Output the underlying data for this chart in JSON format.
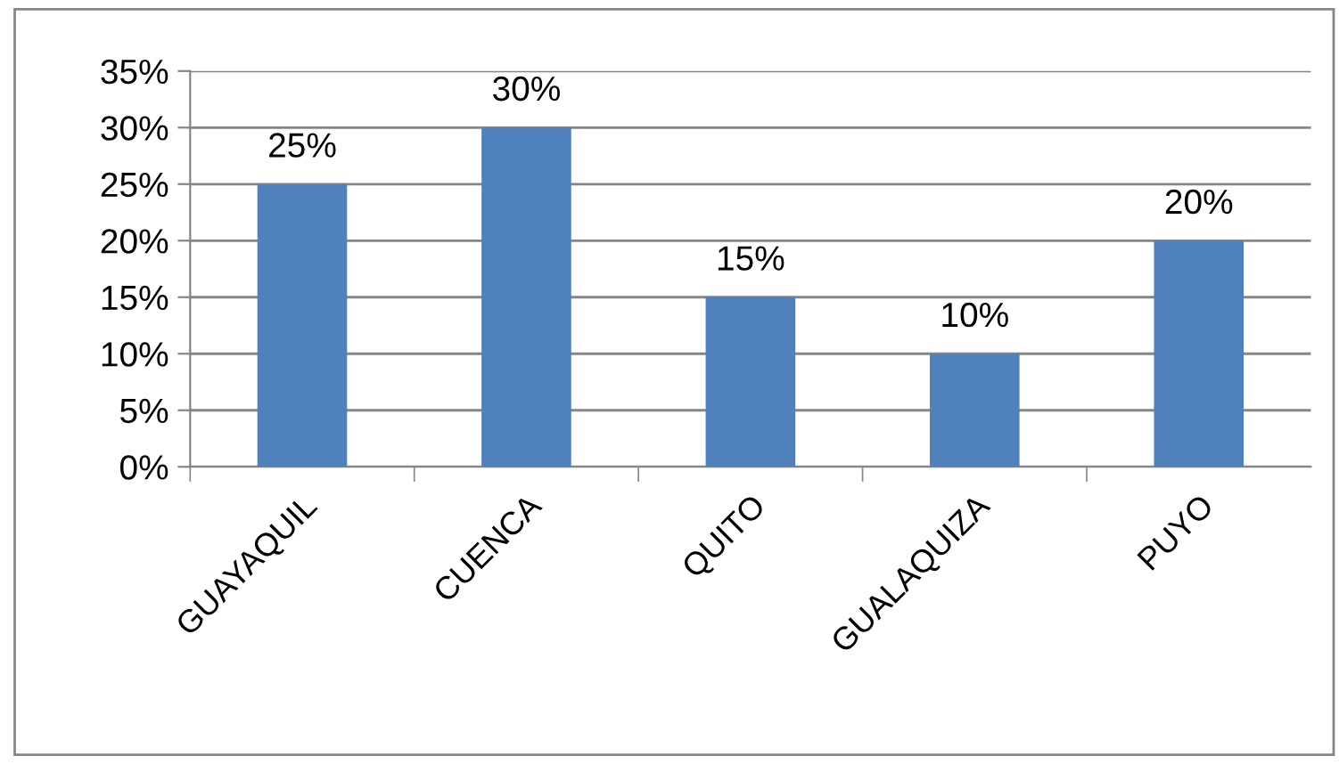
{
  "chart_data": {
    "type": "bar",
    "categories": [
      "GUAYAQUIL",
      "CUENCA",
      "QUITO",
      "GUALAQUIZA",
      "PUYO"
    ],
    "values": [
      25,
      30,
      15,
      10,
      20
    ],
    "value_labels": [
      "25%",
      "30%",
      "15%",
      "10%",
      "20%"
    ],
    "color": "#4f81bd",
    "ylim": [
      0,
      35
    ],
    "yticks": [
      {
        "value": 0,
        "label": "0%"
      },
      {
        "value": 5,
        "label": "5%"
      },
      {
        "value": 10,
        "label": "10%"
      },
      {
        "value": 15,
        "label": "15%"
      },
      {
        "value": 20,
        "label": "20%"
      },
      {
        "value": 25,
        "label": "25%"
      },
      {
        "value": 30,
        "label": "30%"
      },
      {
        "value": 35,
        "label": "35%"
      }
    ],
    "grid": "y",
    "legend": false
  }
}
